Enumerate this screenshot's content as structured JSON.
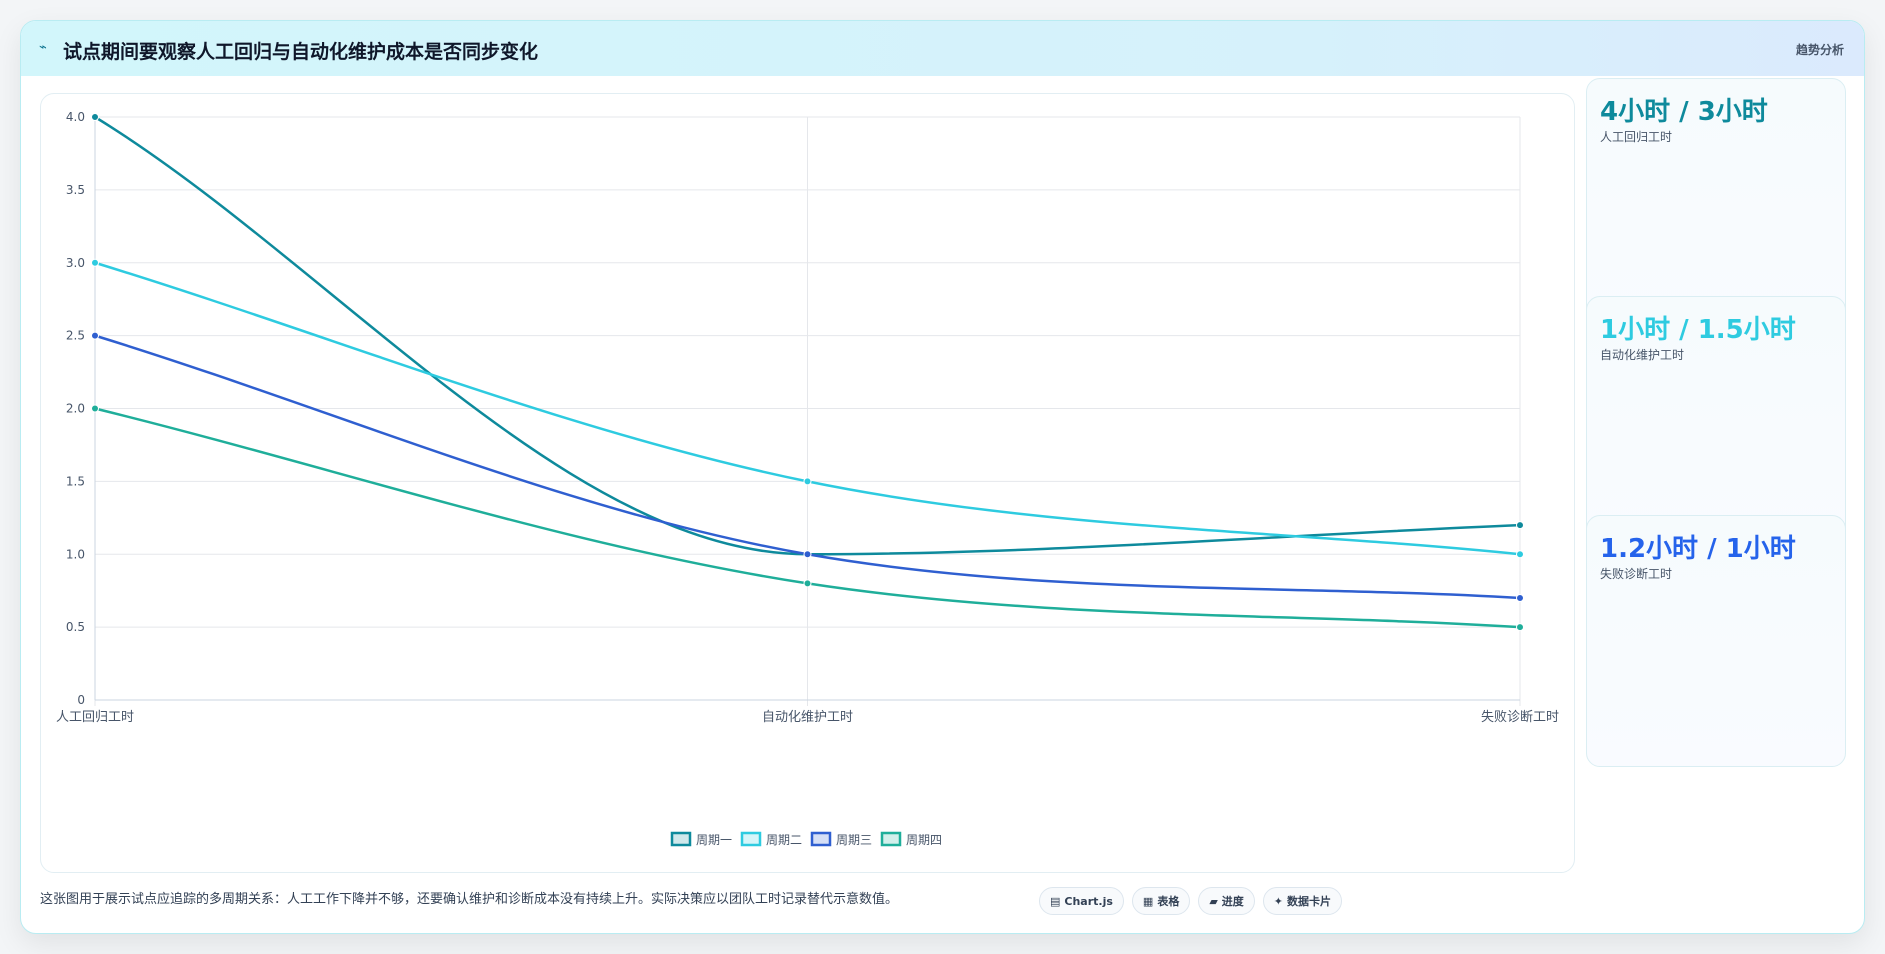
{
  "header": {
    "icon": "trend-line-icon",
    "title": "试点期间要观察人工回归与自动化维护成本是否同步变化",
    "tag": "趋势分析"
  },
  "chart_data": {
    "type": "line",
    "categories": [
      "人工回归工时",
      "自动化维护工时",
      "失败诊断工时"
    ],
    "series": [
      {
        "name": "周期一",
        "values": [
          4,
          1,
          1.2
        ],
        "color": "#0e8a9c"
      },
      {
        "name": "周期二",
        "values": [
          3,
          1.5,
          1
        ],
        "color": "#2ecbe0"
      },
      {
        "name": "周期三",
        "values": [
          2.5,
          1,
          0.7
        ],
        "color": "#2f5fd0"
      },
      {
        "name": "周期四",
        "values": [
          2,
          0.8,
          0.5
        ],
        "color": "#1fae9a"
      }
    ],
    "ylim": [
      0,
      4
    ],
    "yticks": [
      0,
      0.5,
      1,
      1.5,
      2,
      2.5,
      3,
      3.5,
      4
    ],
    "ytick_labels": [
      "0",
      "0.5",
      "1.0",
      "1.5",
      "2.0",
      "2.5",
      "3.0",
      "3.5",
      "4.0"
    ],
    "grid": true,
    "legend": "bottom"
  },
  "stats": [
    {
      "value": "4小时 / 3小时",
      "label": "人工回归工时",
      "color": "#0e8a9c"
    },
    {
      "value": "1小时 / 1.5小时",
      "label": "自动化维护工时",
      "color": "#2ecbe0"
    },
    {
      "value": "1.2小时 / 1小时",
      "label": "失败诊断工时",
      "color": "#2563eb"
    }
  ],
  "footer": {
    "note": "这张图用于展示试点应追踪的多周期关系：人工工作下降并不够，还要确认维护和诊断成本没有持续上升。实际决策应以团队工时记录替代示意数值。",
    "chips": [
      {
        "icon": "chart-icon",
        "glyph": "▤",
        "label": "Chart.js"
      },
      {
        "icon": "table-icon",
        "glyph": "▦",
        "label": "表格"
      },
      {
        "icon": "folder-icon",
        "glyph": "▰",
        "label": "进度"
      },
      {
        "icon": "sparkle-icon",
        "glyph": "✦",
        "label": "数据卡片"
      }
    ]
  }
}
